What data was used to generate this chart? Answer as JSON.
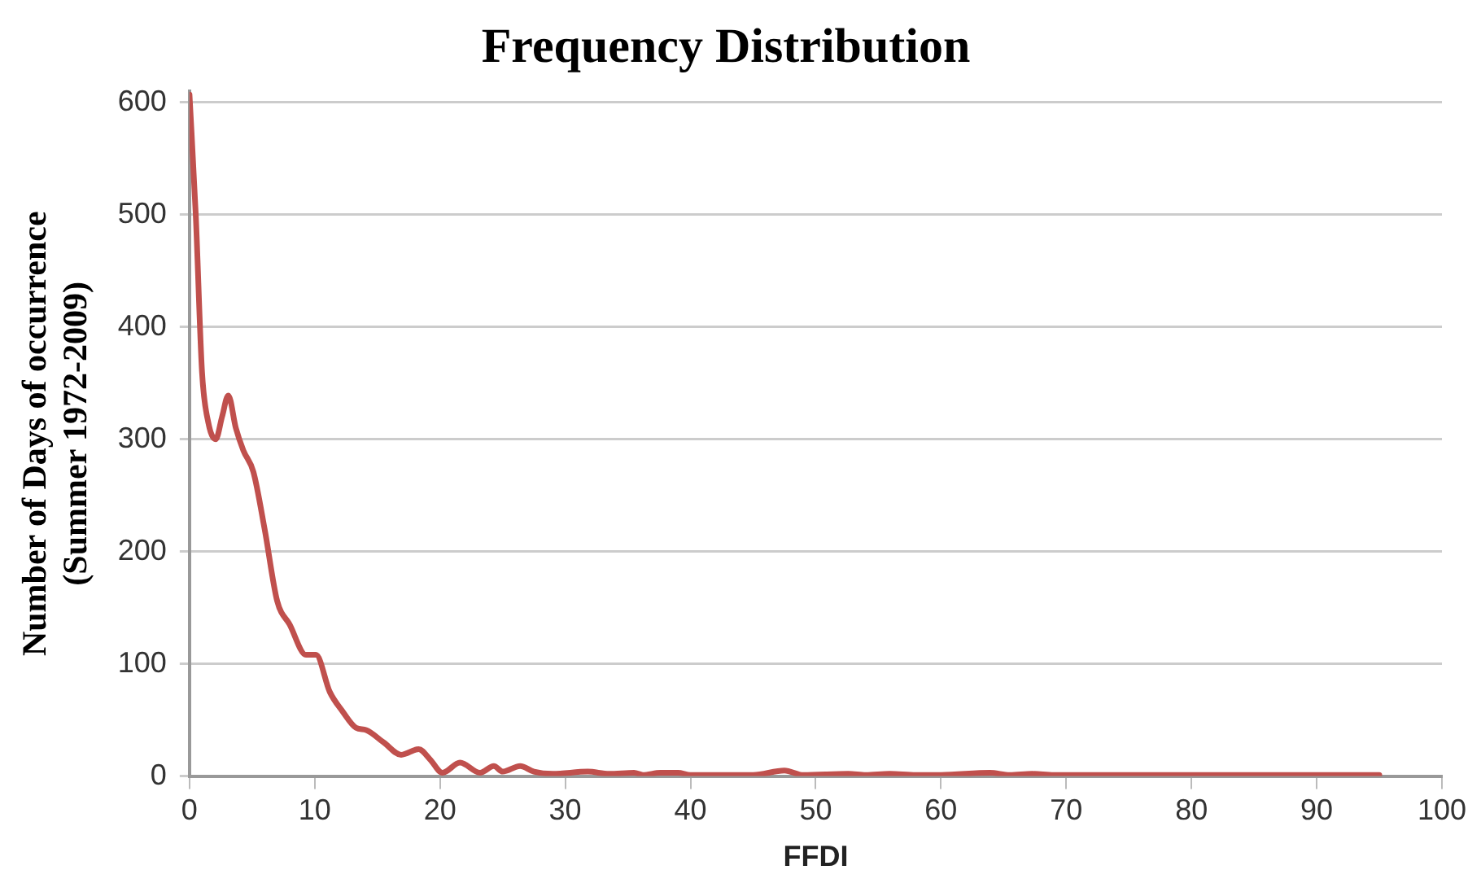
{
  "chart_data": {
    "type": "line",
    "title": "Frequency Distribution",
    "xlabel": "FFDI",
    "ylabel": "Number of Days of occurrence\n(Summer 1972-2009)",
    "x": [
      0,
      0.5,
      1,
      1.5,
      2.1,
      2.6,
      3.1,
      3.7,
      4.3,
      5.1,
      6,
      7,
      8,
      9.3,
      10.1,
      11.2,
      12.2,
      13.3,
      14.1,
      15.5,
      16.9,
      18.3,
      19.2,
      20.2,
      21.6,
      23.2,
      24.3,
      25,
      26.4,
      27.5,
      29,
      31.8,
      33.5,
      35.5,
      36.2,
      37.6,
      39,
      40,
      43,
      45,
      47.5,
      49,
      52.6,
      54,
      55.9,
      58,
      60,
      63.9,
      65.5,
      67.3,
      69,
      75,
      80,
      85,
      90,
      95
    ],
    "series": [
      {
        "color": "#c0504d",
        "values": [
          607,
          500,
          360,
          315,
          300,
          320,
          339,
          310,
          290,
          271,
          220,
          156,
          135,
          108,
          108,
          75,
          58,
          43,
          41,
          30,
          19,
          24,
          15,
          3,
          12,
          3,
          9,
          4,
          9,
          4,
          2,
          4,
          2,
          3,
          1,
          3,
          3,
          1,
          1,
          1,
          5,
          1,
          2,
          1,
          2,
          1,
          1,
          3,
          1,
          2,
          1,
          1,
          1,
          1,
          1,
          1
        ]
      }
    ],
    "xlim": [
      0,
      100
    ],
    "xticks": [
      0,
      10,
      20,
      30,
      40,
      50,
      60,
      70,
      80,
      90,
      100
    ],
    "ylim": [
      0,
      610
    ],
    "yticks": [
      0,
      100,
      200,
      300,
      400,
      500,
      600
    ],
    "grid": "y",
    "legend": false,
    "marker": "none",
    "line_style": "solid"
  }
}
